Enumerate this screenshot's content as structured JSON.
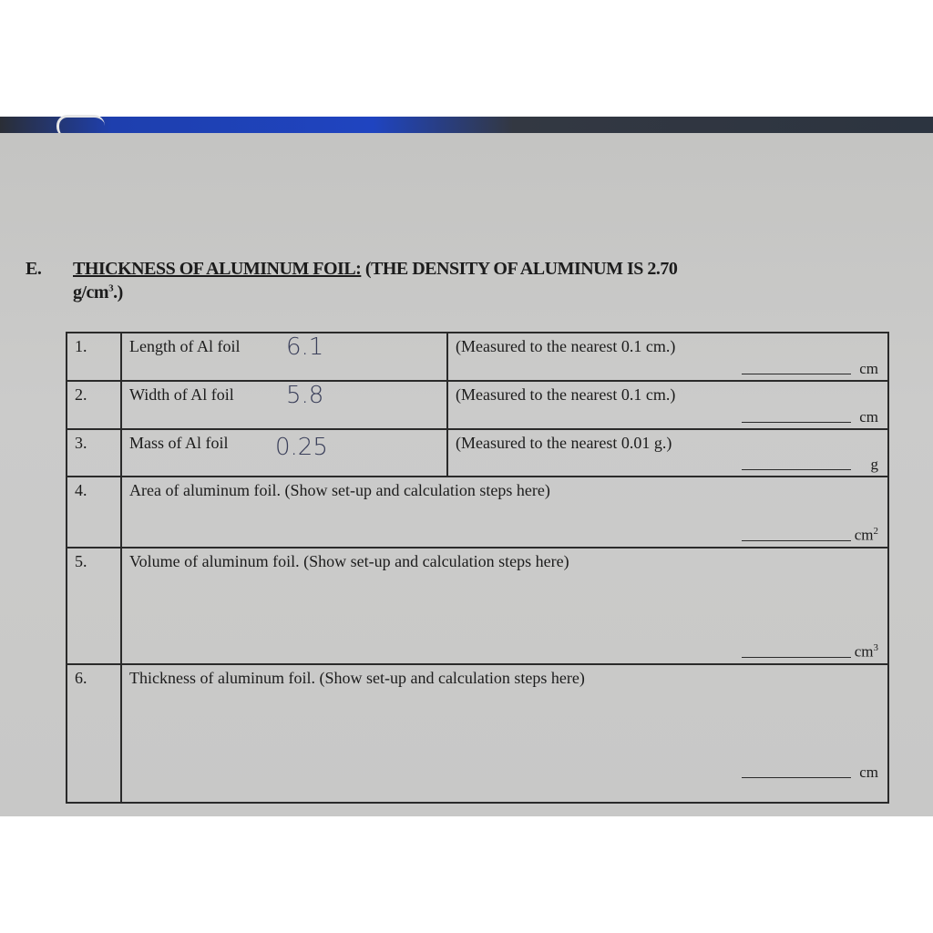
{
  "section": {
    "letter": "E.",
    "title": "THICKNESS OF ALUMINUM FOIL:",
    "subtitle": "(THE DENSITY OF ALUMINUM IS 2.70",
    "subtitle_line2": "g/cm",
    "subtitle_sup": "3",
    "subtitle_end": ".)"
  },
  "rows": [
    {
      "num": "1.",
      "label": "Length of Al foil",
      "handwritten": "6.1",
      "note": "(Measured to the nearest 0.1 cm.)",
      "unit": "cm"
    },
    {
      "num": "2.",
      "label": "Width of Al foil",
      "handwritten": "5.8",
      "note": "(Measured to the nearest 0.1 cm.)",
      "unit": "cm"
    },
    {
      "num": "3.",
      "label": "Mass of Al foil",
      "handwritten": "0.25",
      "note": "(Measured to the nearest 0.01 g.)",
      "unit": "g"
    },
    {
      "num": "4.",
      "label": "Area of aluminum foil.  (Show set-up and calculation steps here)",
      "unit": "cm",
      "unit_sup": "2"
    },
    {
      "num": "5.",
      "label": "Volume of aluminum foil.  (Show set-up and calculation steps here)",
      "unit": "cm",
      "unit_sup": "3"
    },
    {
      "num": "6.",
      "label": "Thickness of aluminum foil.  (Show set-up and calculation steps here)",
      "unit": "cm"
    }
  ]
}
